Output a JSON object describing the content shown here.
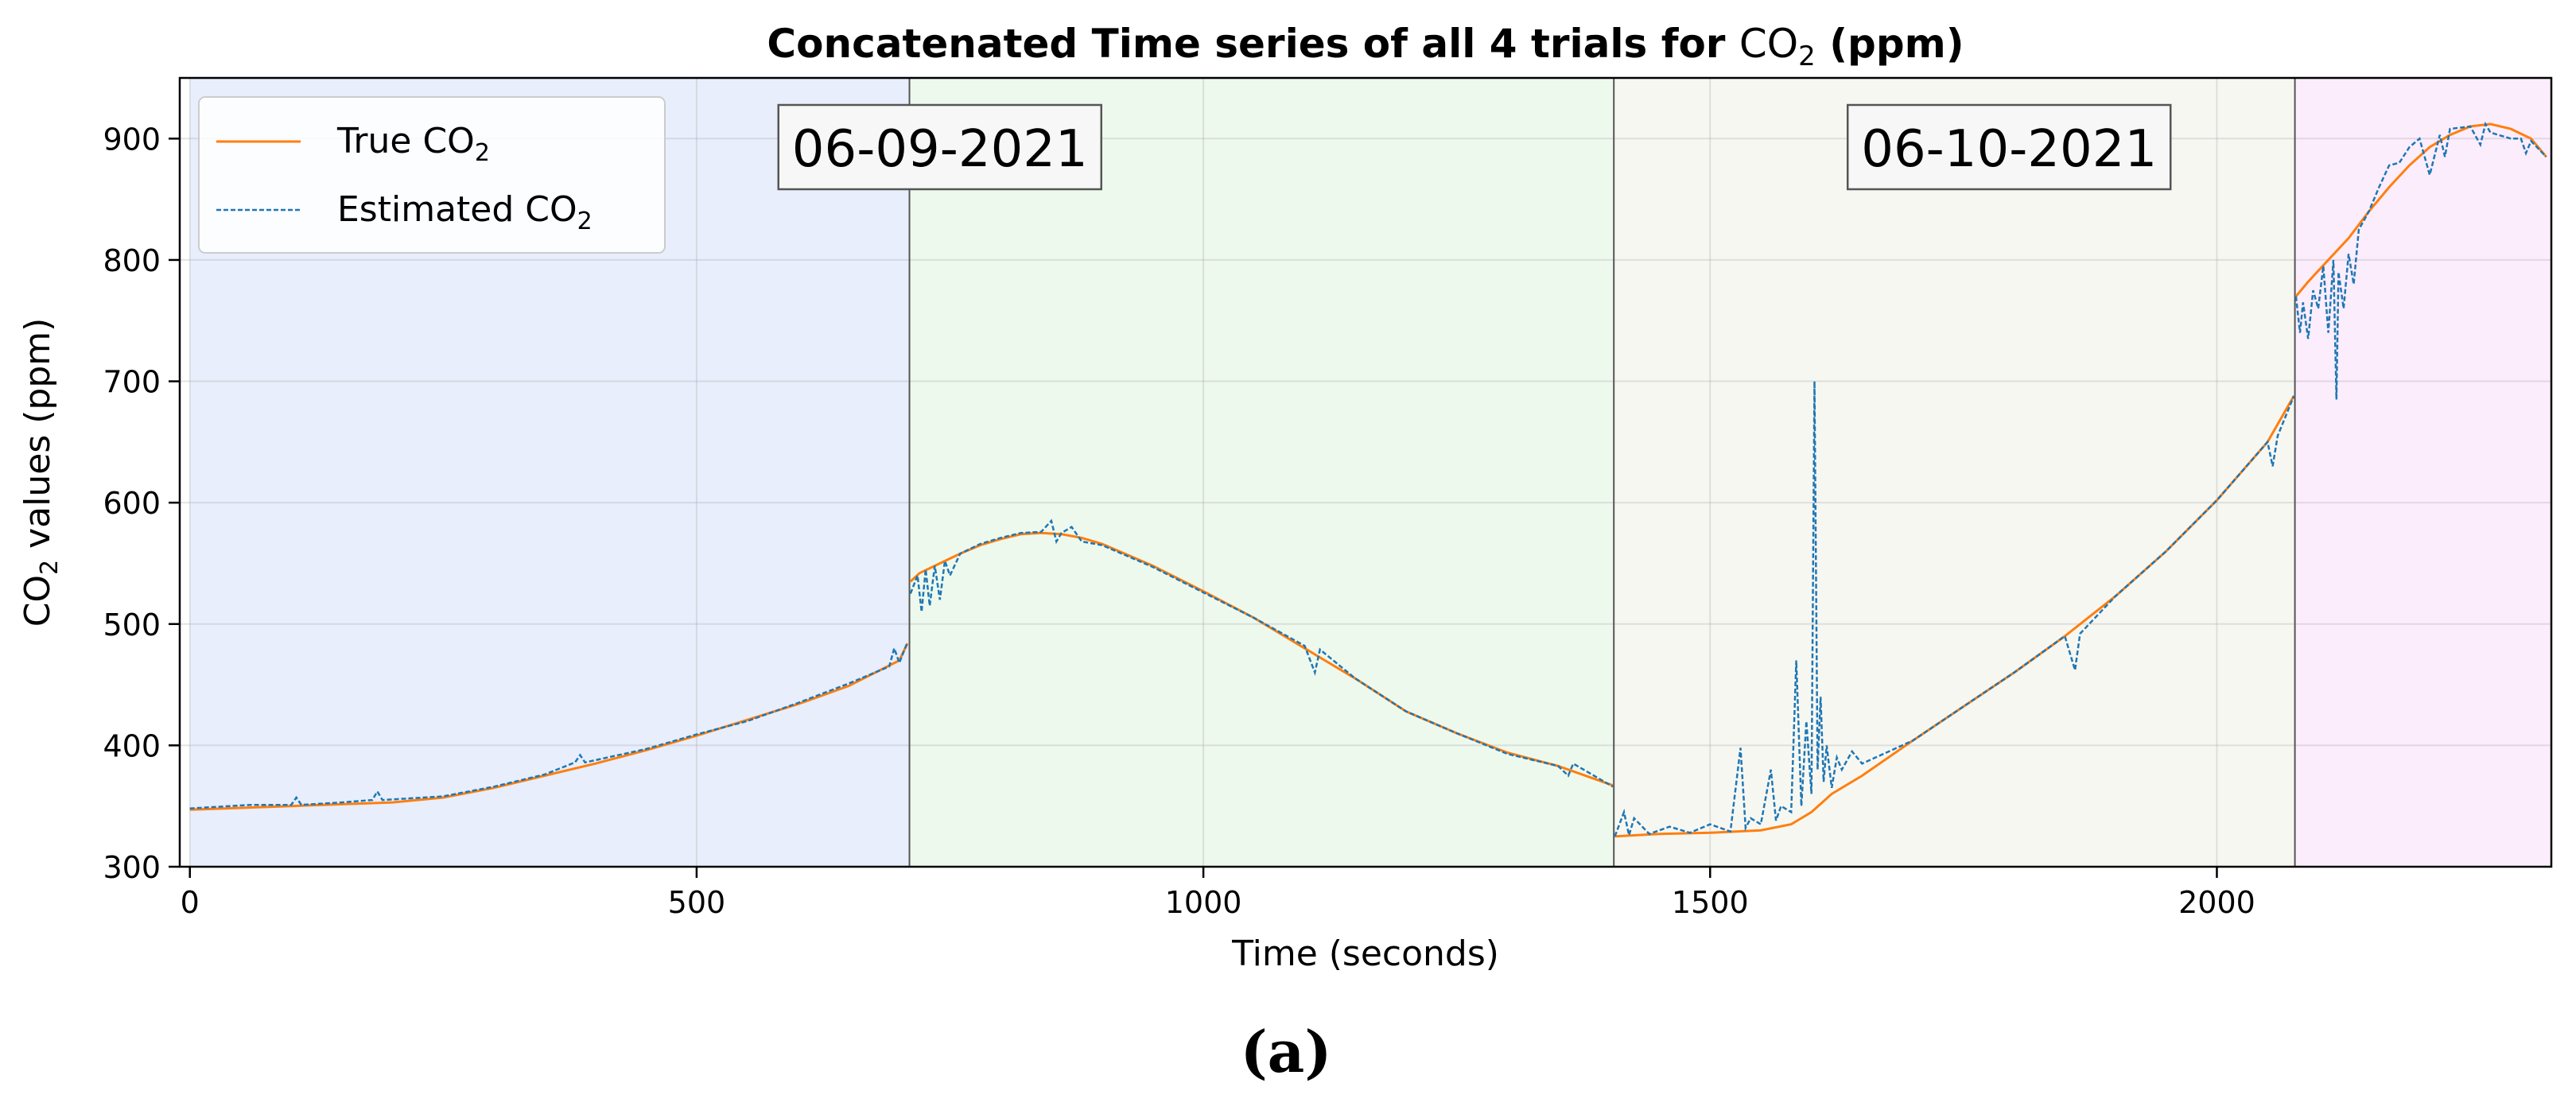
{
  "chart_data": {
    "type": "line",
    "title_main": "Concatenated Time series of all 4 trials for ",
    "title_species": "CO",
    "title_sub": "2",
    "title_tail": " (ppm)",
    "xlabel": "Time (seconds)",
    "ylabel_main": "CO",
    "ylabel_sub": "2",
    "ylabel_tail": " values (ppm)",
    "xlim": [
      -10,
      2330
    ],
    "ylim": [
      300,
      950
    ],
    "x_ticks": [
      0,
      500,
      1000,
      1500,
      2000
    ],
    "y_ticks": [
      300,
      400,
      500,
      600,
      700,
      800,
      900
    ],
    "grid": true,
    "legend_position": "top-left",
    "legend": [
      {
        "label_main": "True CO",
        "label_sub": "2",
        "color": "#ff7f0e",
        "style": "solid"
      },
      {
        "label_main": "Estimated CO",
        "label_sub": "2",
        "color": "#1f77b4",
        "style": "dashed"
      }
    ],
    "trials": [
      {
        "x_start": 0,
        "x_end": 710,
        "color": "#e8eefc"
      },
      {
        "x_start": 710,
        "x_end": 1405,
        "color": "#eef9ee"
      },
      {
        "x_start": 1405,
        "x_end": 2077,
        "color": "#f7f7f2"
      },
      {
        "x_start": 2077,
        "x_end": 2330,
        "color": "#fcedfc"
      }
    ],
    "date_annotations": [
      {
        "text": "06-09-2021",
        "x": 740,
        "y": 893
      },
      {
        "text": "06-10-2021",
        "x": 1795,
        "y": 893
      }
    ],
    "series": [
      {
        "name": "True CO2",
        "color": "#ff7f0e",
        "segments": [
          {
            "x": [
              0,
              100,
              200,
              250,
              300,
              350,
              400,
              450,
              500,
              550,
              600,
              650,
              700,
              708
            ],
            "y": [
              347,
              350,
              353,
              357,
              365,
              375,
              385,
              396,
              408,
              421,
              434,
              449,
              470,
              484
            ]
          },
          {
            "x": [
              711,
              720,
              740,
              760,
              780,
              800,
              820,
              840,
              860,
              880,
              900,
              950,
              1000,
              1050,
              1100,
              1150,
              1200,
              1250,
              1300,
              1350,
              1404
            ],
            "y": [
              535,
              542,
              550,
              558,
              565,
              570,
              574,
              575,
              574,
              571,
              566,
              548,
              527,
              505,
              480,
              455,
              428,
              410,
              394,
              383,
              367
            ]
          },
          {
            "x": [
              1406,
              1450,
              1500,
              1550,
              1580,
              1600,
              1620,
              1650,
              1700,
              1750,
              1800,
              1850,
              1900,
              1950,
              2000,
              2050,
              2076
            ],
            "y": [
              325,
              327,
              328,
              330,
              335,
              345,
              360,
              375,
              404,
              432,
              460,
              490,
              523,
              560,
              602,
              650,
              688
            ]
          },
          {
            "x": [
              2078,
              2090,
              2110,
              2130,
              2150,
              2170,
              2190,
              2210,
              2230,
              2250,
              2270,
              2290,
              2310,
              2325
            ],
            "y": [
              770,
              782,
              800,
              818,
              840,
              860,
              878,
              893,
              903,
              910,
              912,
              908,
              900,
              885
            ]
          }
        ]
      },
      {
        "name": "Estimated CO2",
        "color": "#1f77b4",
        "segments": [
          {
            "x": [
              0,
              60,
              100,
              105,
              110,
              150,
              180,
              185,
              190,
              250,
              300,
              350,
              380,
              385,
              390,
              450,
              500,
              550,
              600,
              650,
              690,
              695,
              700,
              708
            ],
            "y": [
              348,
              351,
              351,
              357,
              351,
              353,
              355,
              362,
              355,
              358,
              366,
              376,
              386,
              392,
              386,
              397,
              409,
              420,
              435,
              451,
              465,
              480,
              468,
              485
            ]
          },
          {
            "x": [
              711,
              718,
              722,
              726,
              730,
              735,
              740,
              745,
              750,
              760,
              780,
              800,
              820,
              840,
              850,
              855,
              860,
              870,
              880,
              900,
              950,
              1000,
              1050,
              1100,
              1110,
              1115,
              1150,
              1200,
              1250,
              1300,
              1350,
              1360,
              1365,
              1404
            ],
            "y": [
              525,
              540,
              510,
              545,
              515,
              548,
              520,
              552,
              540,
              558,
              566,
              571,
              575,
              576,
              585,
              568,
              575,
              580,
              568,
              565,
              547,
              526,
              505,
              482,
              460,
              479,
              455,
              428,
              410,
              393,
              383,
              375,
              385,
              366
            ]
          },
          {
            "x": [
              1406,
              1415,
              1420,
              1425,
              1440,
              1460,
              1480,
              1500,
              1520,
              1530,
              1535,
              1540,
              1550,
              1560,
              1565,
              1570,
              1580,
              1585,
              1590,
              1595,
              1600,
              1603,
              1606,
              1609,
              1612,
              1615,
              1620,
              1625,
              1630,
              1640,
              1650,
              1700,
              1750,
              1800,
              1850,
              1860,
              1865,
              1900,
              1950,
              2000,
              2050,
              2055,
              2060,
              2076
            ],
            "y": [
              325,
              345,
              326,
              340,
              327,
              333,
              328,
              335,
              329,
              398,
              332,
              340,
              335,
              380,
              338,
              350,
              345,
              470,
              350,
              420,
              360,
              700,
              380,
              440,
              370,
              400,
              365,
              390,
              380,
              395,
              385,
              404,
              432,
              460,
              490,
              462,
              492,
              523,
              560,
              602,
              650,
              630,
              655,
              688
            ]
          },
          {
            "x": [
              2078,
              2082,
              2085,
              2090,
              2095,
              2100,
              2105,
              2110,
              2115,
              2118,
              2120,
              2125,
              2130,
              2135,
              2140,
              2150,
              2160,
              2170,
              2180,
              2190,
              2200,
              2210,
              2220,
              2225,
              2230,
              2250,
              2260,
              2265,
              2270,
              2290,
              2300,
              2305,
              2310,
              2325
            ],
            "y": [
              770,
              740,
              765,
              735,
              775,
              760,
              795,
              740,
              800,
              685,
              790,
              760,
              805,
              780,
              825,
              840,
              860,
              878,
              880,
              893,
              900,
              870,
              903,
              885,
              908,
              910,
              895,
              912,
              905,
              900,
              900,
              888,
              898,
              885
            ]
          }
        ]
      }
    ]
  },
  "caption": "(a)"
}
